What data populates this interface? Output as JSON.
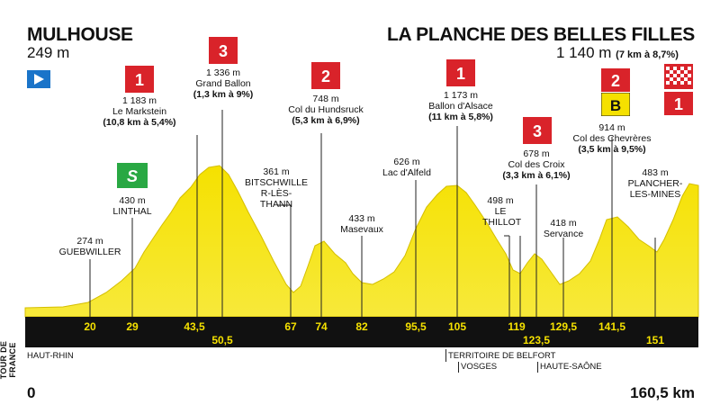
{
  "header": {
    "start_city": "MULHOUSE",
    "start_alt": "249 m",
    "finish_city": "LA PLANCHE DES BELLES FILLES",
    "finish_alt": "1 140 m",
    "finish_climb": "(7 km à 8,7%)"
  },
  "climbs": [
    {
      "cat": "1",
      "name": "Le Markstein",
      "alt": "1 183 m",
      "detail": "(10,8 km à 5,4%)"
    },
    {
      "cat": "3",
      "name": "Grand Ballon",
      "alt": "1 336 m",
      "detail": "(1,3 km à 9%)"
    },
    {
      "cat": "2",
      "name": "Col du Hundsruck",
      "alt": "748 m",
      "detail": "(5,3 km à 6,9%)"
    },
    {
      "cat": "1",
      "name": "Ballon d'Alsace",
      "alt": "1 173 m",
      "detail": "(11 km à 5,8%)"
    },
    {
      "cat": "3",
      "name": "Col des Croix",
      "alt": "678 m",
      "detail": "(3,3 km à 6,1%)"
    },
    {
      "cat": "2",
      "name": "Col des Chevrères",
      "alt": "914 m",
      "detail": "(3,5 km à 9,5%)"
    },
    {
      "cat": "1",
      "name": "",
      "alt": "",
      "detail": ""
    }
  ],
  "bonus_badge": "B",
  "sprint_badge": "S",
  "places": [
    {
      "name": "GUEBWILLER",
      "alt": "274 m"
    },
    {
      "name": "LINTHAL",
      "alt": "430 m"
    },
    {
      "name": "BITSCHWILLER-LÈS-THANN",
      "alt": "361 m"
    },
    {
      "name": "Masevaux",
      "alt": "433 m"
    },
    {
      "name": "Lac d'Alfeld",
      "alt": "626 m"
    },
    {
      "name": "LE THILLOT",
      "alt": "498 m"
    },
    {
      "name": "Servance",
      "alt": "418 m"
    },
    {
      "name": "PLANCHER-LES-MINES",
      "alt": "483 m"
    }
  ],
  "km_marks": [
    "20",
    "29",
    "43,5",
    "50,5",
    "67",
    "74",
    "82",
    "95,5",
    "105",
    "119",
    "123,5",
    "129,5",
    "141,5",
    "151"
  ],
  "regions": [
    "HAUT-RHIN",
    "TERRITOIRE DE BELFORT",
    "VOSGES",
    "HAUTE-SAÔNE"
  ],
  "footer": {
    "start_km": "0",
    "end_km": "160,5 km",
    "brand": "TOUR DE FRANCE"
  },
  "colors": {
    "profile": "#f5e100",
    "profile_shade": "#e2ca00",
    "band": "#111111",
    "category": "#d9232a",
    "sprint": "#29a843",
    "start_flag": "#1a74c9"
  }
}
